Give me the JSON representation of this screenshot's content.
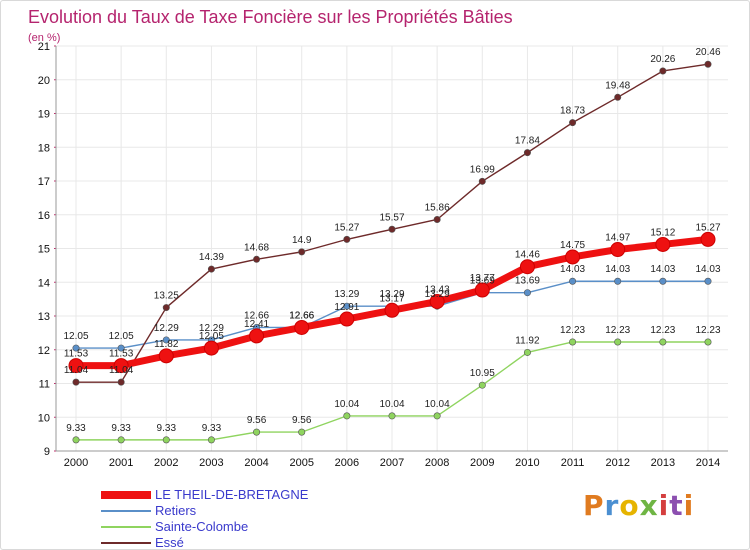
{
  "header": {
    "title": "Evolution du Taux de Taxe Foncière sur les Propriétés Bâties",
    "subtitle": "(en %)"
  },
  "logo": {
    "text": "Proxiti",
    "colors": [
      "#e07b20",
      "#4b8fd1",
      "#e6b400",
      "#6fb544",
      "#d43f3f",
      "#8c4fb0",
      "#e07b20"
    ]
  },
  "colors": {
    "title": "#b5246e",
    "grid": "#e8e8e8",
    "axis": "#999999",
    "legend_text": "#3a3acc"
  },
  "chart_data": {
    "type": "line",
    "x": [
      "2000",
      "2001",
      "2002",
      "2003",
      "2004",
      "2005",
      "2006",
      "2007",
      "2008",
      "2009",
      "2010",
      "2011",
      "2012",
      "2013",
      "2014"
    ],
    "ylim": [
      9,
      21
    ],
    "yticks": [
      "9",
      "10",
      "11",
      "12",
      "13",
      "14",
      "15",
      "16",
      "17",
      "18",
      "19",
      "20",
      "21"
    ],
    "grid": true,
    "legend_position": "bottom-left",
    "series": [
      {
        "name": "LE THEIL-DE-BRETAGNE",
        "color": "#ee1111",
        "values": [
          11.53,
          11.53,
          11.82,
          12.05,
          12.41,
          12.66,
          12.91,
          13.17,
          13.43,
          13.77,
          14.46,
          14.75,
          14.97,
          15.12,
          15.27
        ],
        "labels": [
          "11.53",
          "11.53",
          "11.82",
          "12.05",
          "12.41",
          "12.66",
          "12.91",
          "13.17",
          "13.43",
          "13.77",
          "14.46",
          "14.75",
          "14.97",
          "15.12",
          "15.27"
        ],
        "emphasis": true
      },
      {
        "name": "Retiers",
        "color": "#5a8fc8",
        "values": [
          12.05,
          12.05,
          12.29,
          12.29,
          12.66,
          12.66,
          13.29,
          13.29,
          13.29,
          13.69,
          13.69,
          14.03,
          14.03,
          14.03,
          14.03
        ],
        "labels": [
          "12.05",
          "12.05",
          "12.29",
          "12.29",
          "12.66",
          "12.66",
          "13.29",
          "13.29",
          "13.29",
          "13.69",
          "13.69",
          "14.03",
          "14.03",
          "14.03",
          "14.03"
        ]
      },
      {
        "name": "Sainte-Colombe",
        "color": "#8fd45f",
        "values": [
          9.33,
          9.33,
          9.33,
          9.33,
          9.56,
          9.56,
          10.04,
          10.04,
          10.04,
          10.95,
          11.92,
          12.23,
          12.23,
          12.23,
          12.23
        ],
        "labels": [
          "9.33",
          "9.33",
          "9.33",
          "9.33",
          "9.56",
          "9.56",
          "10.04",
          "10.04",
          "10.04",
          "10.95",
          "11.92",
          "12.23",
          "12.23",
          "12.23",
          "12.23"
        ]
      },
      {
        "name": "Essé",
        "color": "#6e2a2a",
        "values": [
          11.04,
          11.04,
          13.25,
          14.39,
          14.68,
          14.9,
          15.27,
          15.57,
          15.86,
          16.99,
          17.84,
          18.73,
          19.48,
          20.26,
          20.46
        ],
        "labels": [
          "11.04",
          "11.04",
          "13.25",
          "14.39",
          "14.68",
          "14.9",
          "15.27",
          "15.57",
          "15.86",
          "16.99",
          "17.84",
          "18.73",
          "19.48",
          "20.26",
          "20.46"
        ]
      }
    ]
  }
}
